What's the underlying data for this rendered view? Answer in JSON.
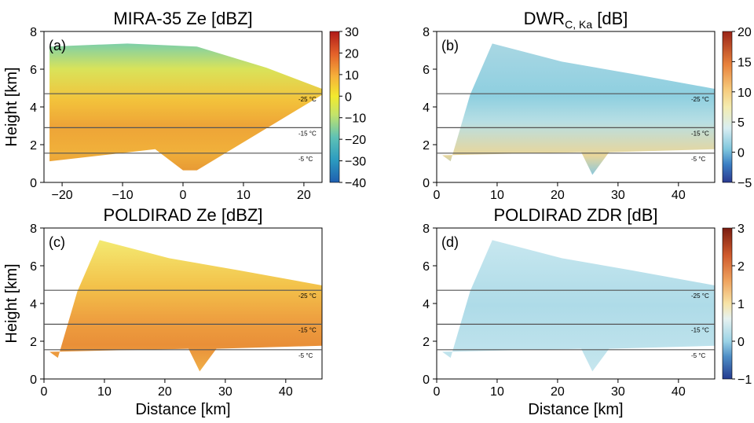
{
  "chart_data": [
    {
      "type": "heatmap",
      "panel_label": "(a)",
      "title_main": "MIRA-35 Ze [dBZ]",
      "title_sub": "",
      "ylabel": "Height [km]",
      "xlabel": "",
      "xlim": [
        -23,
        23
      ],
      "ylim": [
        0,
        8
      ],
      "xticks": [
        -20,
        -10,
        0,
        10,
        20
      ],
      "yticks": [
        0,
        2,
        4,
        6,
        8
      ],
      "colorbar": {
        "min": -40,
        "max": 30,
        "ticks": [
          30,
          20,
          10,
          0,
          -10,
          -20,
          -30,
          -40
        ],
        "colormap": "RdYlBu_r"
      },
      "isotherms": [
        {
          "label": "-25 °C",
          "height": 4.7
        },
        {
          "label": "-15 °C",
          "height": 2.9
        },
        {
          "label": "-5 °C",
          "height": 1.55
        }
      ]
    },
    {
      "type": "heatmap",
      "panel_label": "(b)",
      "title_main": "DWR",
      "title_sub": "C, Ka",
      "title_suffix": " [dB]",
      "ylabel": "",
      "xlabel": "",
      "xlim": [
        0,
        46
      ],
      "ylim": [
        0,
        8
      ],
      "xticks": [
        0,
        10,
        20,
        30,
        40
      ],
      "yticks": [
        0,
        2,
        4,
        6,
        8
      ],
      "colorbar": {
        "min": -5,
        "max": 20,
        "ticks": [
          20,
          15,
          10,
          5,
          0,
          -5
        ],
        "colormap": "RdYlBu_r"
      },
      "isotherms": [
        {
          "label": "-25 °C",
          "height": 4.7
        },
        {
          "label": "-15 °C",
          "height": 2.9
        },
        {
          "label": "-5 °C",
          "height": 1.55
        }
      ]
    },
    {
      "type": "heatmap",
      "panel_label": "(c)",
      "title_main": "POLDIRAD Ze [dBZ]",
      "title_sub": "",
      "ylabel": "Height [km]",
      "xlabel": "Distance [km]",
      "xlim": [
        0,
        46
      ],
      "ylim": [
        0,
        8
      ],
      "xticks": [
        0,
        10,
        20,
        30,
        40
      ],
      "yticks": [
        0,
        2,
        4,
        6,
        8
      ],
      "isotherms": [
        {
          "label": "-25 °C",
          "height": 4.7
        },
        {
          "label": "-15 °C",
          "height": 2.9
        },
        {
          "label": "-5 °C",
          "height": 1.55
        }
      ]
    },
    {
      "type": "heatmap",
      "panel_label": "(d)",
      "title_main": "POLDIRAD ZDR [dB]",
      "title_sub": "",
      "ylabel": "",
      "xlabel": "Distance [km]",
      "xlim": [
        0,
        46
      ],
      "ylim": [
        0,
        8
      ],
      "xticks": [
        0,
        10,
        20,
        30,
        40
      ],
      "yticks": [
        0,
        2,
        4,
        6,
        8
      ],
      "colorbar": {
        "min": -1,
        "max": 3,
        "ticks": [
          3,
          2,
          1,
          0,
          -1
        ],
        "colormap": "RdYlBu_r"
      },
      "isotherms": [
        {
          "label": "-25 °C",
          "height": 4.7
        },
        {
          "label": "-15 °C",
          "height": 2.9
        },
        {
          "label": "-5 °C",
          "height": 1.55
        }
      ]
    }
  ],
  "colors": {
    "isotherm_line": "#555555",
    "axes": "#000000",
    "background": "#ffffff"
  }
}
